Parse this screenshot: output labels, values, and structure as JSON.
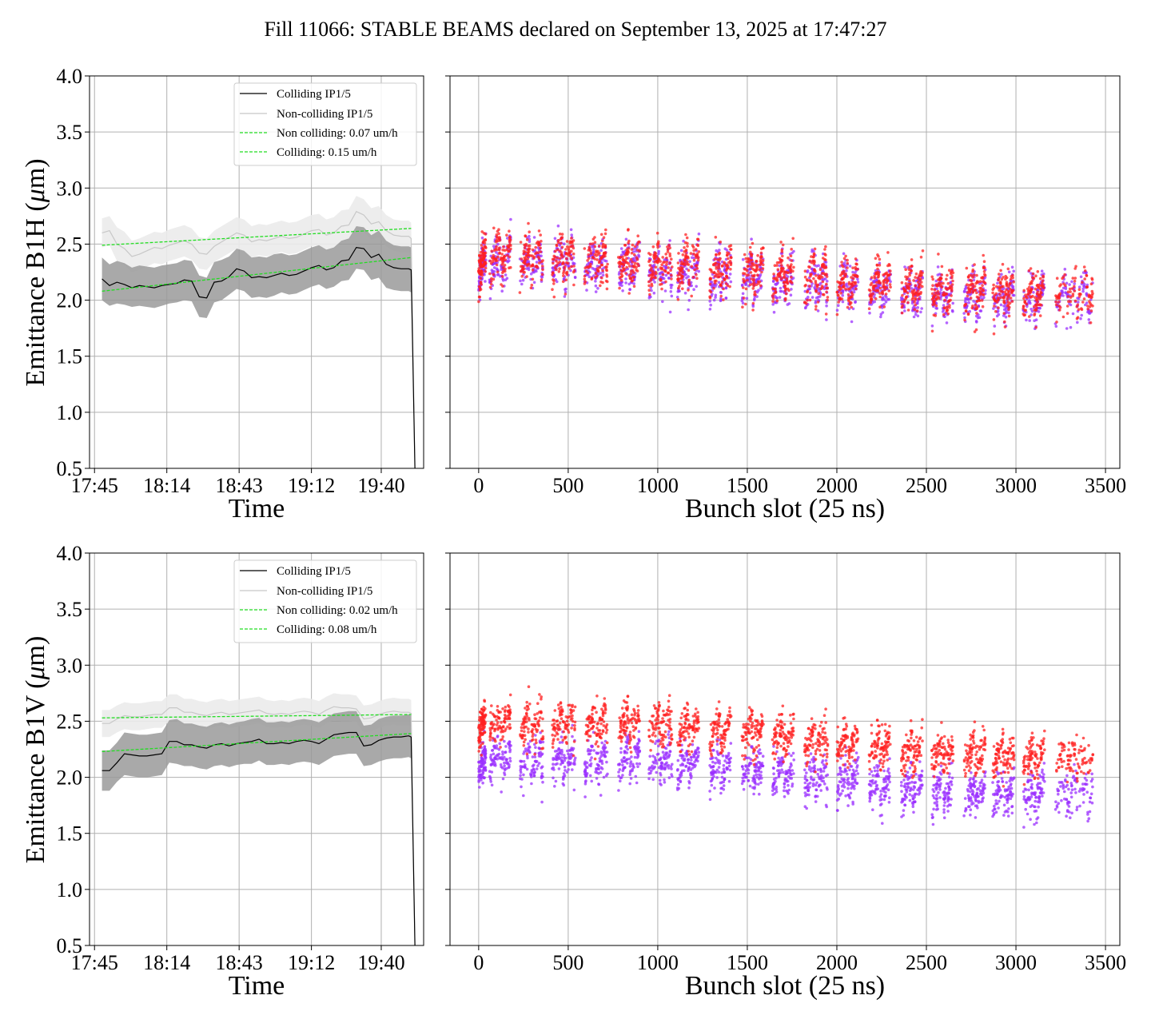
{
  "figure": {
    "title": "Fill 11066: STABLE BEAMS declared on September 13, 2025 at 17:47:27"
  },
  "colors": {
    "colliding": "#000000",
    "non_colliding": "#c8c8c8",
    "fit": "#22dd22",
    "band_colliding": "#9a9a9a",
    "band_non_colliding": "#ebebeb",
    "scatter_a": "#ff2020",
    "scatter_b": "#9b30ff"
  },
  "chart_data": [
    {
      "id": "b1h-time",
      "type": "line",
      "ylabel_prefix": "Emittance B1H (",
      "ylabel_mu": "μ",
      "ylabel_suffix": "m)",
      "xlabel": "Time",
      "x_tick_labels": [
        "17:45",
        "18:14",
        "18:43",
        "19:12",
        "19:40"
      ],
      "x_tick_minutes": [
        0,
        29,
        58,
        87,
        115
      ],
      "xlim_minutes": [
        -2,
        132
      ],
      "ylim": [
        0.5,
        4.0
      ],
      "y_ticks": [
        0.5,
        1.0,
        1.5,
        2.0,
        2.5,
        3.0,
        3.5,
        4.0
      ],
      "y_tick_labels": [
        "0.5",
        "1.0",
        "1.5",
        "2.0",
        "2.5",
        "3.0",
        "3.5",
        "4.0"
      ],
      "grid": true,
      "legend_position": "top-right",
      "legend": [
        "Colliding IP1/5",
        "Non-colliding IP1/5",
        "Non colliding: 0.07 um/h",
        "Colliding: 0.15 um/h"
      ],
      "time_minutes": [
        3,
        6,
        9,
        12,
        15,
        18,
        21,
        24,
        27,
        30,
        33,
        36,
        39,
        42,
        45,
        48,
        51,
        54,
        57,
        60,
        63,
        66,
        69,
        72,
        75,
        78,
        81,
        84,
        87,
        90,
        93,
        96,
        99,
        102,
        105,
        108,
        111,
        114,
        117,
        120,
        123,
        126,
        127,
        128.5
      ],
      "series": [
        {
          "name": "Colliding IP1/5",
          "role": "colliding",
          "mean": [
            2.19,
            2.13,
            2.16,
            2.14,
            2.11,
            2.13,
            2.12,
            2.11,
            2.13,
            2.14,
            2.15,
            2.18,
            2.17,
            2.03,
            2.02,
            2.16,
            2.17,
            2.21,
            2.28,
            2.26,
            2.2,
            2.21,
            2.2,
            2.22,
            2.24,
            2.22,
            2.23,
            2.26,
            2.29,
            2.31,
            2.27,
            2.29,
            2.35,
            2.36,
            2.47,
            2.46,
            2.38,
            2.41,
            2.32,
            2.29,
            2.28,
            2.28,
            2.27,
            0.45
          ],
          "band_low": [
            2.0,
            1.95,
            1.97,
            1.96,
            1.94,
            1.95,
            1.94,
            1.93,
            1.95,
            1.97,
            1.98,
            2.0,
            1.99,
            1.85,
            1.84,
            1.98,
            2.0,
            2.05,
            2.1,
            2.08,
            2.02,
            2.03,
            2.02,
            2.04,
            2.07,
            2.05,
            2.06,
            2.09,
            2.12,
            2.14,
            2.1,
            2.12,
            2.17,
            2.18,
            2.28,
            2.27,
            2.18,
            2.2,
            2.11,
            2.09,
            2.08,
            2.08,
            2.07,
            0.45
          ],
          "band_high": [
            2.38,
            2.32,
            2.35,
            2.33,
            2.29,
            2.31,
            2.3,
            2.29,
            2.31,
            2.32,
            2.33,
            2.36,
            2.35,
            2.22,
            2.2,
            2.34,
            2.36,
            2.39,
            2.46,
            2.44,
            2.38,
            2.39,
            2.38,
            2.41,
            2.42,
            2.4,
            2.41,
            2.44,
            2.47,
            2.49,
            2.45,
            2.47,
            2.53,
            2.55,
            2.66,
            2.65,
            2.58,
            2.62,
            2.53,
            2.49,
            2.48,
            2.48,
            2.47,
            0.45
          ]
        },
        {
          "name": "Non-colliding IP1/5",
          "role": "non_colliding",
          "mean": [
            2.6,
            2.62,
            2.5,
            2.46,
            2.39,
            2.41,
            2.44,
            2.47,
            2.46,
            2.49,
            2.51,
            2.53,
            2.5,
            2.42,
            2.41,
            2.48,
            2.52,
            2.56,
            2.6,
            2.58,
            2.52,
            2.54,
            2.53,
            2.55,
            2.57,
            2.55,
            2.56,
            2.59,
            2.62,
            2.63,
            2.58,
            2.6,
            2.66,
            2.67,
            2.79,
            2.76,
            2.68,
            2.7,
            2.62,
            2.58,
            2.57,
            2.57,
            2.55,
            0.45
          ],
          "band_low": [
            2.47,
            2.49,
            2.35,
            2.31,
            2.25,
            2.27,
            2.3,
            2.33,
            2.32,
            2.35,
            2.37,
            2.39,
            2.36,
            2.28,
            2.27,
            2.34,
            2.38,
            2.42,
            2.46,
            2.44,
            2.38,
            2.4,
            2.39,
            2.41,
            2.43,
            2.41,
            2.42,
            2.45,
            2.48,
            2.49,
            2.44,
            2.46,
            2.52,
            2.53,
            2.64,
            2.61,
            2.54,
            2.56,
            2.48,
            2.44,
            2.43,
            2.43,
            2.41,
            0.45
          ],
          "band_high": [
            2.73,
            2.75,
            2.65,
            2.61,
            2.53,
            2.55,
            2.58,
            2.61,
            2.6,
            2.63,
            2.65,
            2.67,
            2.64,
            2.56,
            2.55,
            2.62,
            2.66,
            2.7,
            2.74,
            2.72,
            2.66,
            2.68,
            2.67,
            2.69,
            2.71,
            2.69,
            2.7,
            2.73,
            2.76,
            2.77,
            2.72,
            2.74,
            2.8,
            2.81,
            2.93,
            2.9,
            2.82,
            2.84,
            2.76,
            2.72,
            2.71,
            2.71,
            2.69,
            0.45
          ]
        }
      ],
      "fits": [
        {
          "name": "Non colliding: 0.07 um/h",
          "x": [
            3,
            127
          ],
          "y": [
            2.49,
            2.64
          ]
        },
        {
          "name": "Colliding: 0.15 um/h",
          "x": [
            3,
            127
          ],
          "y": [
            2.08,
            2.38
          ]
        }
      ]
    },
    {
      "id": "b1h-bunch",
      "type": "scatter",
      "xlabel": "Bunch slot (25 ns)",
      "xlim": [
        -160,
        3580
      ],
      "x_ticks": [
        0,
        500,
        1000,
        1500,
        2000,
        2500,
        3000,
        3500
      ],
      "x_tick_labels": [
        "0",
        "500",
        "1000",
        "1500",
        "2000",
        "2500",
        "3000",
        "3500"
      ],
      "ylim": [
        0.5,
        4.0
      ],
      "y_ticks": [
        0.5,
        1.0,
        1.5,
        2.0,
        2.5,
        3.0,
        3.5,
        4.0
      ],
      "grid": true,
      "trains": [
        [
          0,
          40
        ],
        [
          60,
          180
        ],
        [
          230,
          360
        ],
        [
          410,
          540
        ],
        [
          590,
          720
        ],
        [
          780,
          900
        ],
        [
          950,
          1080
        ],
        [
          1110,
          1230
        ],
        [
          1290,
          1410
        ],
        [
          1470,
          1590
        ],
        [
          1640,
          1760
        ],
        [
          1820,
          1950
        ],
        [
          2000,
          2120
        ],
        [
          2180,
          2300
        ],
        [
          2360,
          2480
        ],
        [
          2530,
          2650
        ],
        [
          2710,
          2830
        ],
        [
          2870,
          2990
        ],
        [
          3040,
          3160
        ],
        [
          3220,
          3430
        ]
      ],
      "trend": [
        [
          0,
          2.36
        ],
        [
          500,
          2.36
        ],
        [
          1000,
          2.31
        ],
        [
          1500,
          2.23
        ],
        [
          2000,
          2.16
        ],
        [
          2500,
          2.07
        ],
        [
          3000,
          2.04
        ],
        [
          3430,
          2.06
        ]
      ],
      "spread": 0.19,
      "ramp": 0.25,
      "offset_a": 0.02,
      "offset_b": -0.02,
      "points_per_train_per_series": 90
    },
    {
      "id": "b1v-time",
      "type": "line",
      "ylabel_prefix": "Emittance B1V (",
      "ylabel_mu": "μ",
      "ylabel_suffix": "m)",
      "xlabel": "Time",
      "x_tick_labels": [
        "17:45",
        "18:14",
        "18:43",
        "19:12",
        "19:40"
      ],
      "x_tick_minutes": [
        0,
        29,
        58,
        87,
        115
      ],
      "xlim_minutes": [
        -2,
        132
      ],
      "ylim": [
        0.5,
        4.0
      ],
      "y_ticks": [
        0.5,
        1.0,
        1.5,
        2.0,
        2.5,
        3.0,
        3.5,
        4.0
      ],
      "y_tick_labels": [
        "0.5",
        "1.0",
        "1.5",
        "2.0",
        "2.5",
        "3.0",
        "3.5",
        "4.0"
      ],
      "grid": true,
      "legend_position": "top-right",
      "legend": [
        "Colliding IP1/5",
        "Non-colliding IP1/5",
        "Non colliding: 0.02 um/h",
        "Colliding: 0.08 um/h"
      ],
      "time_minutes": [
        3,
        6,
        9,
        12,
        15,
        18,
        21,
        24,
        27,
        30,
        33,
        36,
        39,
        42,
        45,
        48,
        51,
        54,
        57,
        60,
        63,
        66,
        69,
        72,
        75,
        78,
        81,
        84,
        87,
        90,
        93,
        96,
        99,
        102,
        105,
        108,
        111,
        114,
        117,
        120,
        123,
        126,
        127,
        128.5
      ],
      "series": [
        {
          "name": "Colliding IP1/5",
          "role": "colliding",
          "mean": [
            2.06,
            2.06,
            2.13,
            2.21,
            2.2,
            2.19,
            2.19,
            2.2,
            2.21,
            2.32,
            2.32,
            2.29,
            2.29,
            2.27,
            2.26,
            2.29,
            2.3,
            2.28,
            2.3,
            2.31,
            2.32,
            2.34,
            2.3,
            2.3,
            2.31,
            2.3,
            2.32,
            2.33,
            2.32,
            2.3,
            2.34,
            2.38,
            2.39,
            2.4,
            2.4,
            2.28,
            2.29,
            2.33,
            2.35,
            2.36,
            2.36,
            2.37,
            2.36,
            0.45
          ],
          "band_low": [
            1.88,
            1.88,
            1.96,
            2.02,
            2.01,
            2.0,
            2.0,
            2.01,
            2.02,
            2.13,
            2.12,
            2.1,
            2.1,
            2.08,
            2.07,
            2.1,
            2.11,
            2.09,
            2.11,
            2.12,
            2.12,
            2.15,
            2.11,
            2.11,
            2.12,
            2.11,
            2.13,
            2.14,
            2.13,
            2.11,
            2.15,
            2.19,
            2.2,
            2.21,
            2.21,
            2.1,
            2.11,
            2.14,
            2.16,
            2.17,
            2.17,
            2.18,
            2.17,
            0.45
          ],
          "band_high": [
            2.24,
            2.24,
            2.31,
            2.4,
            2.39,
            2.38,
            2.38,
            2.39,
            2.4,
            2.51,
            2.52,
            2.48,
            2.48,
            2.46,
            2.45,
            2.48,
            2.49,
            2.47,
            2.49,
            2.5,
            2.52,
            2.53,
            2.49,
            2.49,
            2.5,
            2.49,
            2.51,
            2.52,
            2.51,
            2.49,
            2.53,
            2.57,
            2.58,
            2.59,
            2.59,
            2.46,
            2.47,
            2.52,
            2.54,
            2.55,
            2.55,
            2.56,
            2.55,
            0.45
          ]
        },
        {
          "name": "Non-colliding IP1/5",
          "role": "non_colliding",
          "mean": [
            2.48,
            2.48,
            2.52,
            2.55,
            2.54,
            2.54,
            2.55,
            2.56,
            2.56,
            2.62,
            2.62,
            2.58,
            2.58,
            2.56,
            2.55,
            2.57,
            2.58,
            2.56,
            2.57,
            2.58,
            2.59,
            2.6,
            2.57,
            2.56,
            2.57,
            2.56,
            2.58,
            2.59,
            2.58,
            2.56,
            2.6,
            2.63,
            2.62,
            2.62,
            2.61,
            2.52,
            2.53,
            2.56,
            2.58,
            2.59,
            2.58,
            2.58,
            2.57,
            0.45
          ],
          "band_low": [
            2.36,
            2.36,
            2.4,
            2.43,
            2.42,
            2.42,
            2.43,
            2.44,
            2.44,
            2.5,
            2.5,
            2.46,
            2.46,
            2.44,
            2.43,
            2.45,
            2.46,
            2.44,
            2.45,
            2.46,
            2.47,
            2.48,
            2.45,
            2.44,
            2.45,
            2.44,
            2.46,
            2.47,
            2.46,
            2.44,
            2.48,
            2.51,
            2.5,
            2.5,
            2.49,
            2.4,
            2.41,
            2.44,
            2.46,
            2.47,
            2.46,
            2.46,
            2.45,
            0.45
          ],
          "band_high": [
            2.6,
            2.6,
            2.64,
            2.67,
            2.66,
            2.66,
            2.67,
            2.68,
            2.68,
            2.74,
            2.74,
            2.7,
            2.7,
            2.68,
            2.67,
            2.69,
            2.7,
            2.68,
            2.69,
            2.7,
            2.71,
            2.72,
            2.69,
            2.68,
            2.69,
            2.68,
            2.7,
            2.71,
            2.7,
            2.68,
            2.72,
            2.75,
            2.74,
            2.74,
            2.73,
            2.64,
            2.65,
            2.68,
            2.7,
            2.71,
            2.7,
            2.7,
            2.69,
            0.45
          ]
        }
      ],
      "fits": [
        {
          "name": "Non colliding: 0.02 um/h",
          "x": [
            3,
            127
          ],
          "y": [
            2.53,
            2.56
          ]
        },
        {
          "name": "Colliding: 0.08 um/h",
          "x": [
            3,
            127
          ],
          "y": [
            2.23,
            2.39
          ]
        }
      ]
    },
    {
      "id": "b1v-bunch",
      "type": "scatter",
      "xlabel": "Bunch slot (25 ns)",
      "xlim": [
        -160,
        3580
      ],
      "x_ticks": [
        0,
        500,
        1000,
        1500,
        2000,
        2500,
        3000,
        3500
      ],
      "x_tick_labels": [
        "0",
        "500",
        "1000",
        "1500",
        "2000",
        "2500",
        "3000",
        "3500"
      ],
      "ylim": [
        0.5,
        4.0
      ],
      "y_ticks": [
        0.5,
        1.0,
        1.5,
        2.0,
        2.5,
        3.0,
        3.5,
        4.0
      ],
      "grid": true,
      "trains": [
        [
          0,
          40
        ],
        [
          60,
          180
        ],
        [
          230,
          360
        ],
        [
          410,
          540
        ],
        [
          590,
          720
        ],
        [
          780,
          900
        ],
        [
          950,
          1080
        ],
        [
          1110,
          1230
        ],
        [
          1290,
          1410
        ],
        [
          1470,
          1590
        ],
        [
          1640,
          1760
        ],
        [
          1820,
          1950
        ],
        [
          2000,
          2120
        ],
        [
          2180,
          2300
        ],
        [
          2360,
          2480
        ],
        [
          2530,
          2650
        ],
        [
          2710,
          2830
        ],
        [
          2870,
          2990
        ],
        [
          3040,
          3160
        ],
        [
          3220,
          3430
        ]
      ],
      "trend": [
        [
          0,
          2.33
        ],
        [
          500,
          2.33
        ],
        [
          1000,
          2.31
        ],
        [
          1500,
          2.24
        ],
        [
          2000,
          2.16
        ],
        [
          2500,
          2.06
        ],
        [
          3000,
          2.02
        ],
        [
          3430,
          2.03
        ]
      ],
      "spread": 0.17,
      "ramp": 0.22,
      "offset_a": 0.16,
      "offset_b": -0.17,
      "points_per_train_per_series": 90
    }
  ]
}
